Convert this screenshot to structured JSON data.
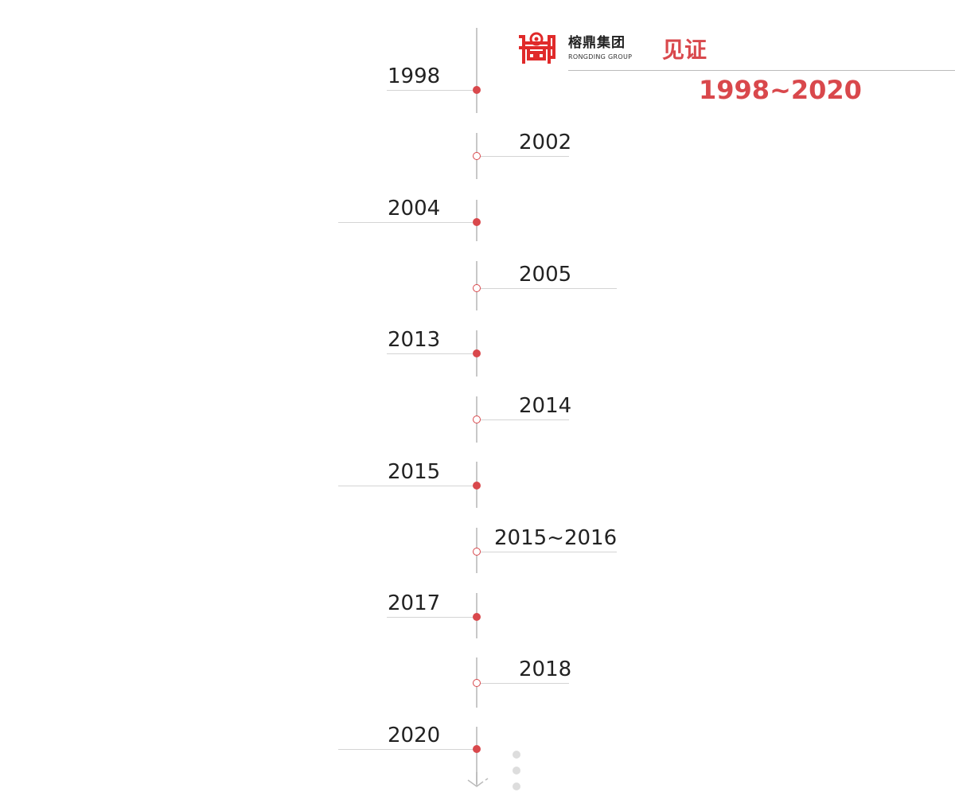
{
  "header": {
    "logo_cn": "榕鼎集团",
    "logo_en": "RONGDING GROUP",
    "title": "见证",
    "range": "1998~2020"
  },
  "colors": {
    "accent": "#d9484c",
    "line": "#c8c8c8",
    "text": "#222222"
  },
  "timeline": [
    {
      "year": "1998",
      "marker": "solid"
    },
    {
      "year": "2002",
      "marker": "hollow"
    },
    {
      "year": "2004",
      "marker": "solid"
    },
    {
      "year": "2005",
      "marker": "hollow"
    },
    {
      "year": "2013",
      "marker": "solid"
    },
    {
      "year": "2014",
      "marker": "hollow"
    },
    {
      "year": "2015",
      "marker": "solid"
    },
    {
      "year": "2015~2016",
      "marker": "hollow"
    },
    {
      "year": "2017",
      "marker": "solid"
    },
    {
      "year": "2018",
      "marker": "hollow"
    },
    {
      "year": "2020",
      "marker": "solid"
    }
  ],
  "end_arrow_icon": "arrow-down-icon",
  "more_icon": "vertical-dots-icon"
}
